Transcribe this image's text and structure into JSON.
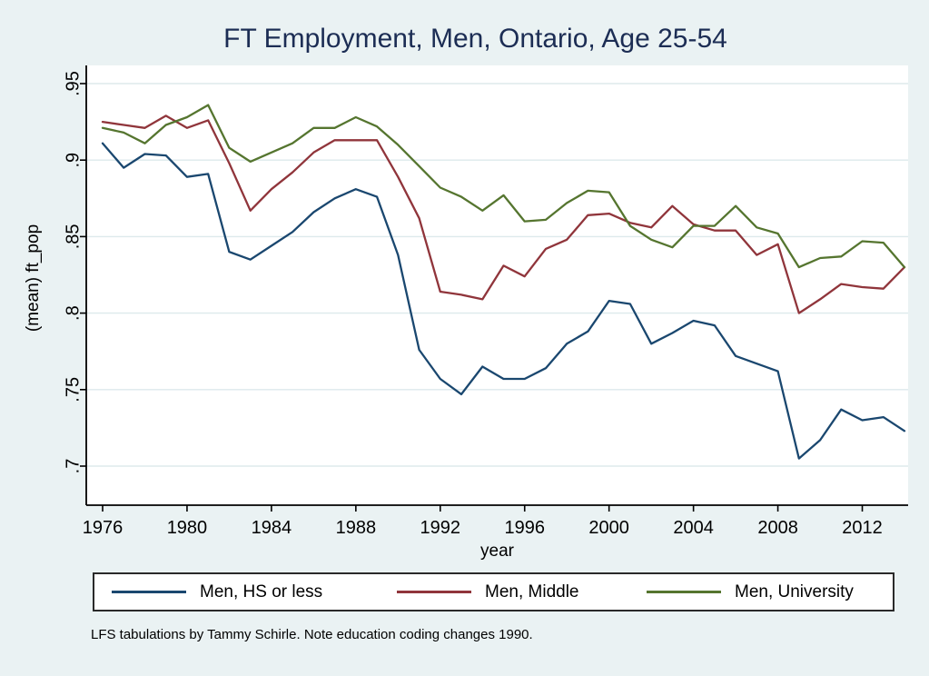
{
  "title": "FT Employment, Men, Ontario, Age 25-54",
  "footnote": "LFS tabulations by Tammy Schirle. Note education coding changes 1990.",
  "colors": {
    "page_background": "#eaf2f3",
    "plot_background": "#ffffff",
    "gridline": "#ddeaec",
    "axis": "#000000",
    "title_text": "#1c2d54",
    "navy": "#1a476f",
    "maroon": "#90353b",
    "forest_green": "#55752f"
  },
  "legend": {
    "items": [
      {
        "label": "Men, HS or less",
        "color_key": "navy"
      },
      {
        "label": "Men, Middle",
        "color_key": "maroon"
      },
      {
        "label": "Men, University",
        "color_key": "forest_green"
      }
    ]
  },
  "chart_data": {
    "type": "line",
    "title": "FT Employment, Men, Ontario, Age 25-54",
    "xlabel": "year",
    "ylabel": "(mean) ft_pop",
    "x_tick_labels": [
      "1976",
      "1980",
      "1984",
      "1988",
      "1992",
      "1996",
      "2000",
      "2004",
      "2008",
      "2012"
    ],
    "x_tick_values": [
      1976,
      1980,
      1984,
      1988,
      1992,
      1996,
      2000,
      2004,
      2008,
      2012
    ],
    "y_ticks": [
      {
        "value": 0.7,
        "label": ".7"
      },
      {
        "value": 0.75,
        "label": ".75"
      },
      {
        "value": 0.8,
        "label": ".8"
      },
      {
        "value": 0.85,
        "label": ".85"
      },
      {
        "value": 0.9,
        "label": ".9"
      },
      {
        "value": 0.95,
        "label": ".95"
      }
    ],
    "xlim": [
      1975.2,
      2014.2
    ],
    "ylim": [
      0.675,
      0.962
    ],
    "grid": "horizontal-only",
    "legend_position": "bottom",
    "x": [
      1976,
      1977,
      1978,
      1979,
      1980,
      1981,
      1982,
      1983,
      1984,
      1985,
      1986,
      1987,
      1988,
      1989,
      1990,
      1991,
      1992,
      1993,
      1994,
      1995,
      1996,
      1997,
      1998,
      1999,
      2000,
      2001,
      2002,
      2003,
      2004,
      2005,
      2006,
      2007,
      2008,
      2009,
      2010,
      2011,
      2012,
      2013,
      2014
    ],
    "series": [
      {
        "name": "Men, HS or less",
        "color_key": "navy",
        "values": [
          0.911,
          0.895,
          0.904,
          0.903,
          0.889,
          0.891,
          0.84,
          0.835,
          0.844,
          0.853,
          0.866,
          0.875,
          0.881,
          0.876,
          0.838,
          0.776,
          0.757,
          0.747,
          0.765,
          0.757,
          0.757,
          0.764,
          0.78,
          0.788,
          0.808,
          0.806,
          0.78,
          0.787,
          0.795,
          0.792,
          0.772,
          0.767,
          0.762,
          0.705,
          0.717,
          0.737,
          0.73,
          0.732,
          0.723
        ]
      },
      {
        "name": "Men, Middle",
        "color_key": "maroon",
        "values": [
          0.925,
          0.923,
          0.921,
          0.929,
          0.921,
          0.926,
          0.898,
          0.867,
          0.881,
          0.892,
          0.905,
          0.913,
          0.913,
          0.913,
          0.889,
          0.862,
          0.814,
          0.812,
          0.809,
          0.831,
          0.824,
          0.842,
          0.848,
          0.864,
          0.865,
          0.859,
          0.856,
          0.87,
          0.858,
          0.854,
          0.854,
          0.838,
          0.845,
          0.8,
          0.809,
          0.819,
          0.817,
          0.816,
          0.83
        ]
      },
      {
        "name": "Men, University",
        "color_key": "forest_green",
        "values": [
          0.921,
          0.918,
          0.911,
          0.923,
          0.928,
          0.936,
          0.908,
          0.899,
          0.905,
          0.911,
          0.921,
          0.921,
          0.928,
          0.922,
          0.91,
          0.896,
          0.882,
          0.876,
          0.867,
          0.877,
          0.86,
          0.861,
          0.872,
          0.88,
          0.879,
          0.857,
          0.848,
          0.843,
          0.857,
          0.857,
          0.87,
          0.856,
          0.852,
          0.83,
          0.836,
          0.837,
          0.847,
          0.846,
          0.83
        ]
      }
    ]
  }
}
